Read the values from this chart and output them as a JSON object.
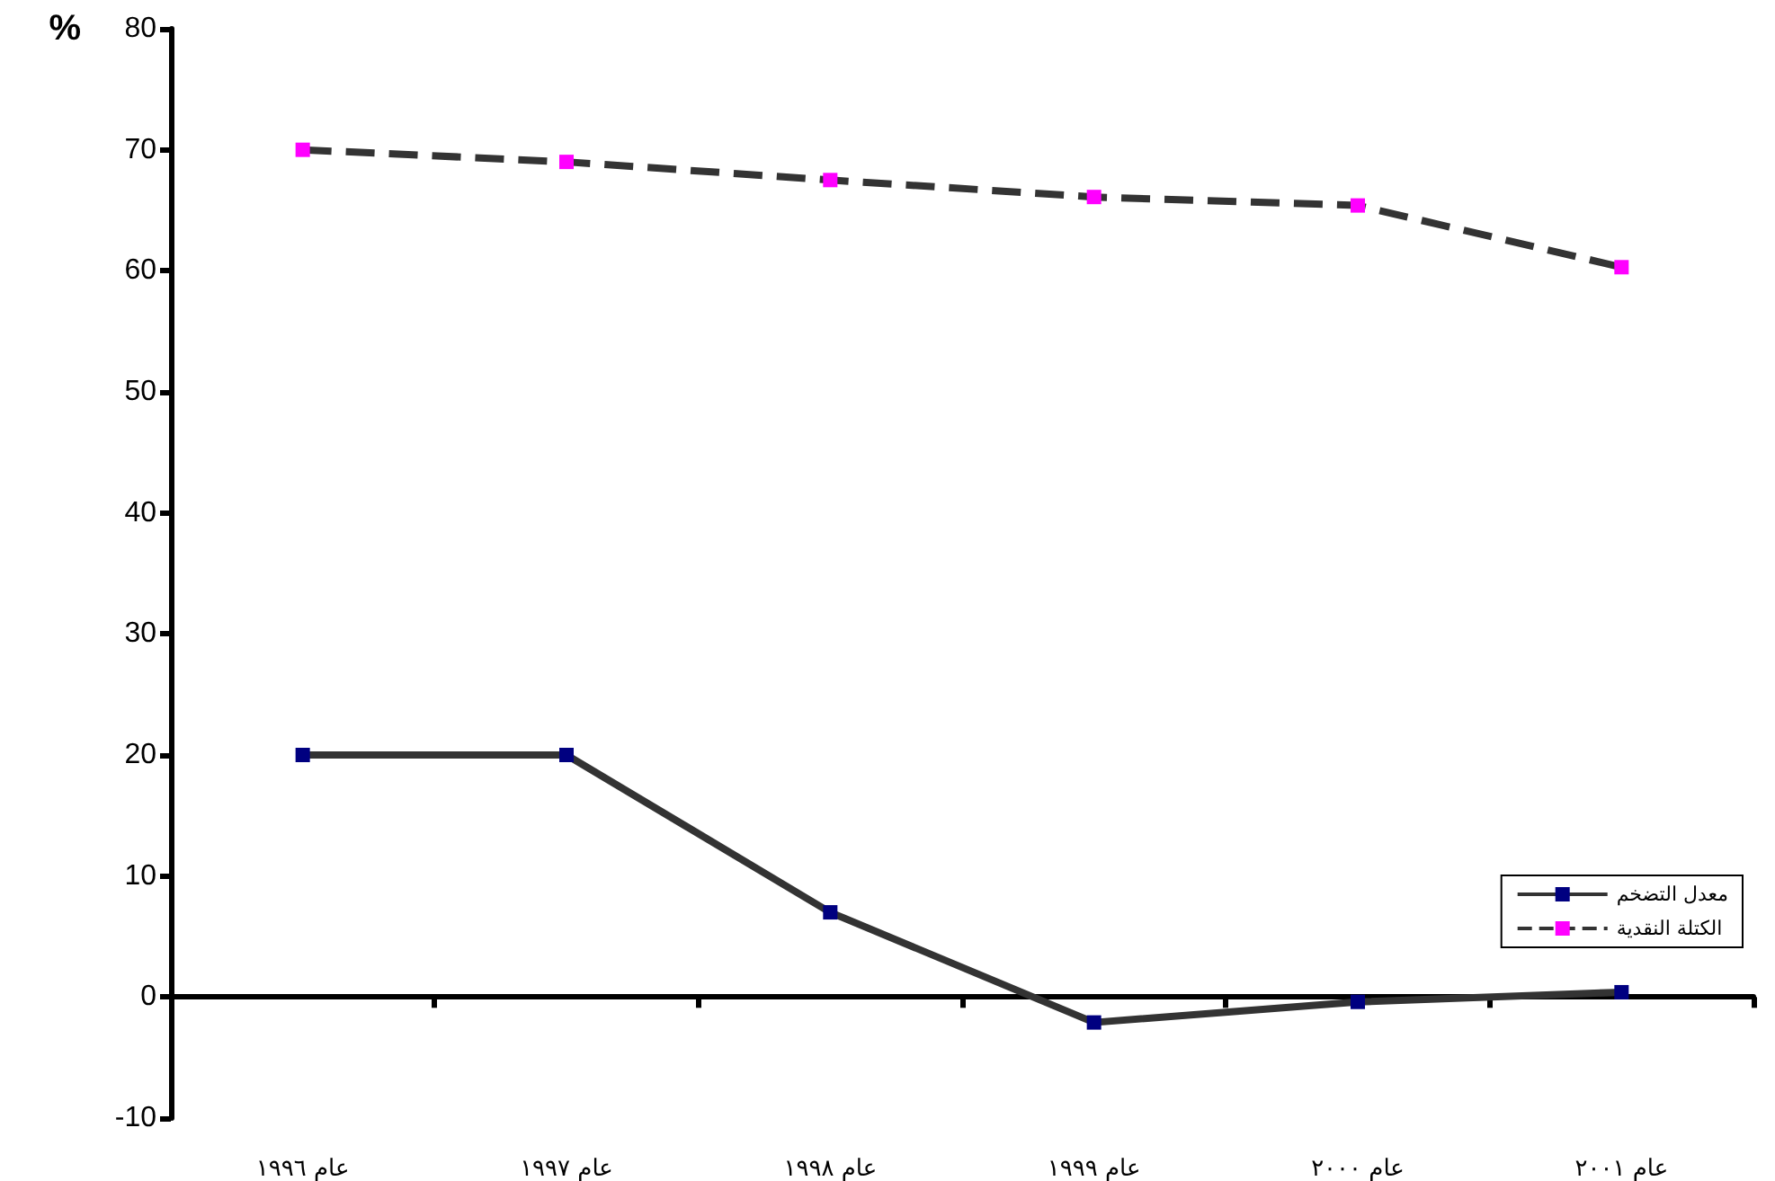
{
  "chart_data": {
    "type": "line",
    "ylabel": "%",
    "categories": [
      "عام ١٩٩٦",
      "عام ١٩٩٧",
      "عام ١٩٩٨",
      "عام ١٩٩٩",
      "عام ٢٠٠٠",
      "عام ٢٠٠١"
    ],
    "series": [
      {
        "name": "معدل التضخم",
        "color": "#333333",
        "colors": [
          "#000080",
          "#000080",
          "#000080",
          "#000080",
          "#000080",
          "#000080"
        ],
        "line_style": "solid",
        "values": [
          20,
          20,
          7,
          -2.1,
          -0.4,
          0.4
        ]
      },
      {
        "name": "الكتلة النقدية",
        "color": "#333333",
        "colors": [
          "#ff00ff",
          "#ff00ff",
          "#ff00ff",
          "#ff00ff",
          "#ff00ff",
          "#ff00ff"
        ],
        "line_style": "dashed",
        "values": [
          70,
          69,
          67.5,
          66.1,
          65.4,
          60.3
        ]
      }
    ],
    "ylim": [
      -10,
      80
    ],
    "yticks": [
      -10,
      0,
      10,
      20,
      30,
      40,
      50,
      60,
      70,
      80
    ],
    "legend": "bottom right",
    "marker": "square"
  }
}
